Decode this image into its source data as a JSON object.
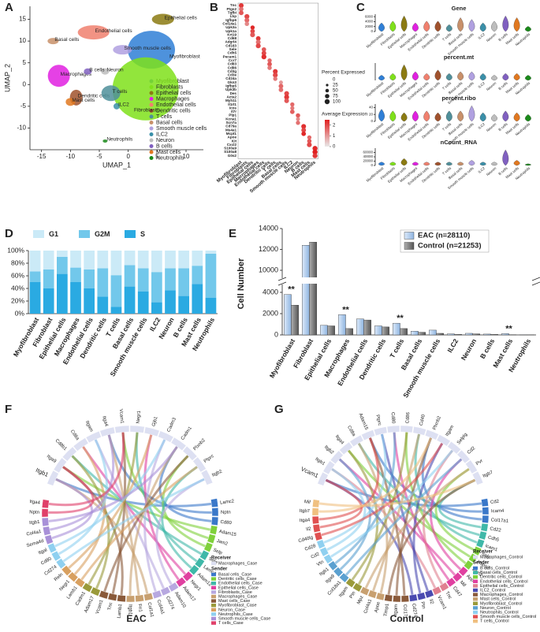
{
  "panels": [
    "A",
    "B",
    "C",
    "D",
    "E",
    "F",
    "G"
  ],
  "chart_data": [
    {
      "type": "scatter",
      "xlabel": "UMAP_1",
      "ylabel": "UMAP_2",
      "xlim": [
        -17,
        13
      ],
      "ylim": [
        -15,
        18
      ],
      "xticks": [
        -15,
        -10,
        -5,
        0,
        5,
        10
      ],
      "yticks": [
        -10,
        -5,
        0,
        5,
        10,
        15
      ],
      "series": [
        {
          "name": "Myofibroblast",
          "color": "#2f7fd6",
          "x": [
            4
          ],
          "y": [
            8
          ]
        },
        {
          "name": "Fibroblasts",
          "color": "#7fe01a",
          "x": [
            3
          ],
          "y": [
            -1
          ]
        },
        {
          "name": "Epithelial cells",
          "color": "#8b7a12",
          "x": [
            6
          ],
          "y": [
            15
          ]
        },
        {
          "name": "Macrophages",
          "color": "#e020e0",
          "x": [
            -12
          ],
          "y": [
            2
          ]
        },
        {
          "name": "Endothelial cells",
          "color": "#f0806e",
          "x": [
            -6
          ],
          "y": [
            12
          ]
        },
        {
          "name": "Dendritic cells",
          "color": "#a0522d",
          "x": [
            -9
          ],
          "y": [
            -3
          ]
        },
        {
          "name": "T cells",
          "color": "#4f8f9a",
          "x": [
            -3
          ],
          "y": [
            -2
          ]
        },
        {
          "name": "Basal cells",
          "color": "#c8906a",
          "x": [
            -13
          ],
          "y": [
            10
          ]
        },
        {
          "name": "Smooth muscle cells",
          "color": "#b0a0e0",
          "x": [
            -1
          ],
          "y": [
            8
          ]
        },
        {
          "name": "ILC2",
          "color": "#3a8fa8",
          "x": [
            -2
          ],
          "y": [
            -5
          ]
        },
        {
          "name": "Neuron",
          "color": "#bdbdbd",
          "x": [
            -4
          ],
          "y": [
            3
          ]
        },
        {
          "name": "B cells",
          "color": "#8060c0",
          "x": [
            -7
          ],
          "y": [
            3
          ]
        },
        {
          "name": "Mast cells",
          "color": "#e07820",
          "x": [
            -10
          ],
          "y": [
            -4
          ]
        },
        {
          "name": "Neutrophils",
          "color": "#1a8a1a",
          "x": [
            -4
          ],
          "y": [
            -13
          ]
        }
      ]
    },
    {
      "type": "dot",
      "genes": [
        "Tnc",
        "Ptgs2",
        "Tgfbi",
        "Lbp",
        "Igfbp6",
        "Col14a1",
        "Upk3a",
        "Upk1a",
        "Krt19",
        "Cd68",
        "Adgrl4",
        "Cd163",
        "Sele",
        "Cdh5",
        "Pecam1",
        "Ccr7",
        "Cd83",
        "Cd86",
        "Cd3g",
        "Cd3e",
        "Cd24a",
        "Gkn3",
        "Igfbp5",
        "Upk3b",
        "Des",
        "Acta2",
        "Myh11",
        "Il1rl1",
        "Icos",
        "Il7r",
        "Plp1",
        "Kcna1",
        "Scn7a",
        "Cd79a",
        "Ms4a1",
        "Mcpt1",
        "Apoe",
        "Kit",
        "Cxcl2",
        "S100a9",
        "S100a8",
        "G0s2"
      ],
      "categories": [
        "Myofibroblast",
        "Fibroblasts",
        "Epithelial cells",
        "Macrophages",
        "Endothelial cells",
        "Dendritic cells",
        "T cells",
        "Basal cells",
        "Smooth muscle cells",
        "ILC2",
        "Neuron",
        "B cells",
        "Mast cells",
        "Neutrophils"
      ],
      "percent": [
        90,
        80,
        85,
        95,
        88,
        75,
        70,
        80,
        92,
        85,
        90,
        95,
        78,
        88,
        96,
        70,
        82,
        75,
        90,
        94,
        72,
        60,
        85,
        80,
        90,
        95,
        88,
        70,
        65,
        80,
        75,
        60,
        70,
        90,
        85,
        80,
        70,
        75,
        92,
        100,
        100,
        95
      ],
      "expression": [
        2.2,
        1.5,
        1.8,
        2.0,
        1.6,
        1.2,
        2.4,
        2.0,
        1.8,
        2.2,
        1.5,
        2.0,
        1.8,
        2.0,
        2.3,
        1.6,
        1.8,
        1.4,
        2.2,
        2.0,
        1.4,
        1.0,
        1.6,
        1.5,
        2.0,
        2.2,
        1.8,
        1.6,
        1.4,
        1.7,
        1.8,
        1.2,
        1.5,
        2.3,
        2.0,
        2.4,
        1.6,
        1.8,
        2.0,
        2.4,
        2.5,
        2.2
      ],
      "size_title": "Percent Expressed",
      "size_ticks": [
        0,
        25,
        50,
        75,
        100
      ],
      "color_title": "Average Expression",
      "color_lim": [
        0,
        2.5
      ],
      "color_ticks": [
        2,
        1,
        0
      ]
    },
    {
      "type": "violin",
      "categories": [
        "Myofibroblast",
        "Fibroblasts",
        "Epithelial cells",
        "Macrophages",
        "Endothelial cells",
        "Dendritic cells",
        "T cells",
        "Basal cells",
        "Smooth muscle cells",
        "ILC2",
        "Neuron",
        "B cells",
        "Mast cells",
        "Neutrophils"
      ],
      "panels": [
        {
          "title": "Gene",
          "ylim": [
            0,
            7000
          ],
          "yticks": [
            0,
            2000,
            4000,
            6000
          ]
        },
        {
          "title": "percent.mt",
          "ylim": [
            0,
            100
          ],
          "yticks": []
        },
        {
          "title": "percent.ribo",
          "ylim": [
            0,
            50
          ],
          "yticks": [
            0,
            20,
            40
          ]
        },
        {
          "title": "nCount_RNA",
          "ylim": [
            0,
            80000
          ],
          "yticks": [
            0,
            20000,
            40000,
            60000
          ]
        }
      ]
    },
    {
      "type": "stacked_bar",
      "categories": [
        "Myofibroblast",
        "Fibroblast",
        "Epithelial cells",
        "Macrophages",
        "Endothelial cells",
        "Dendritic cells",
        "T cells",
        "Basal cells",
        "Smooth muscle cells",
        "ILC2",
        "Neuron",
        "B cells",
        "Mast cells",
        "Neutrophils"
      ],
      "series": [
        {
          "name": "S",
          "color": "#2aaae2",
          "values": [
            50,
            40,
            63,
            50,
            40,
            27,
            11,
            43,
            35,
            18,
            37,
            28,
            47,
            25
          ]
        },
        {
          "name": "G2M",
          "color": "#72c8eb",
          "values": [
            17,
            30,
            27,
            23,
            30,
            45,
            50,
            34,
            37,
            48,
            35,
            44,
            29,
            70
          ]
        },
        {
          "name": "G1",
          "color": "#cbeaf7",
          "values": [
            33,
            30,
            10,
            27,
            30,
            28,
            39,
            23,
            28,
            34,
            28,
            28,
            24,
            5
          ]
        }
      ],
      "legend_order": [
        "G1",
        "G2M",
        "S"
      ],
      "ylim": [
        0,
        100
      ],
      "yticks": [
        {
          "value": 0,
          "label": "0%"
        },
        {
          "value": 20,
          "label": "20%"
        },
        {
          "value": 40,
          "label": "40%"
        },
        {
          "value": 60,
          "label": "60%"
        },
        {
          "value": 80,
          "label": "80%"
        },
        {
          "value": 100,
          "label": "100%"
        }
      ]
    },
    {
      "type": "grouped_bar",
      "ylabel": "Cell Number",
      "categories": [
        "Myofibroblast",
        "Fibroblast",
        "Epithelial cells",
        "Macrophages",
        "Endothelial cells",
        "Dendritic cells",
        "T cells",
        "Basal cells",
        "Smooth muscle cells",
        "ILC2",
        "Neuron",
        "B cells",
        "Mast cells",
        "Neutrophils"
      ],
      "series": [
        {
          "name": "EAC (n=28110)",
          "color": "#b8d2f0",
          "values": [
            3800,
            12400,
            900,
            1900,
            1500,
            850,
            1100,
            350,
            450,
            100,
            150,
            80,
            120,
            10
          ]
        },
        {
          "name": "Control (n=21253)",
          "color": "#7a7a7a",
          "values": [
            2800,
            12700,
            850,
            600,
            1400,
            750,
            600,
            250,
            150,
            50,
            100,
            50,
            20,
            5
          ]
        }
      ],
      "ylim": [
        0,
        14000
      ],
      "axis_break": [
        4000,
        10000
      ],
      "yticks": [
        0,
        2000,
        4000,
        10000,
        12000,
        14000
      ],
      "annotations": [
        {
          "text": "**",
          "category": "Myofibroblast"
        },
        {
          "text": "**",
          "category": "Macrophages"
        },
        {
          "text": "**",
          "category": "T cells"
        },
        {
          "text": "**",
          "category": "Mast cells"
        }
      ]
    }
  ],
  "chords": [
    {
      "title": "EAC",
      "receiver_heading": "Receiver",
      "receiver": "Macrophages_Case",
      "sender_heading": "Sender",
      "senders": [
        "Basal cells_Case",
        "Dentritic cells_Case",
        "Endothelial cells_Case",
        "Epithelial cells_Case",
        "Fibroblasts_Case",
        "Macrophages_Case",
        "Mast cells_Case",
        "Myofibroblast_Case",
        "Neuron_Case",
        "Neutrophils_Case",
        "Smooth muscle cells_Case",
        "T cells_Case"
      ],
      "colors": [
        "#3a78c9",
        "#7fd13b",
        "#3fb8a8",
        "#e040a0",
        "#b7a8e0",
        "#c8a070",
        "#8a5a3a",
        "#9a9a3a",
        "#d8a060",
        "#8fd0f0",
        "#a890d8",
        "#e0406a"
      ],
      "receiver_genes": [
        "Itgb1",
        "Itga9",
        "Cd8b1",
        "Cd8a",
        "Itgam",
        "Itga4",
        "Vcam1",
        "Negr1",
        "Gjb1",
        "Cadm3",
        "Cadm1",
        "Plxnb2",
        "Ptprc",
        "Itgb2"
      ],
      "sender_genes": [
        "Lamc2",
        "Nptn",
        "Cd80",
        "Adam15",
        "Jam2",
        "Selp",
        "Sele",
        "Lamc2",
        "Adam12",
        "Negr1",
        "Adam17",
        "Adam10",
        "Cd274",
        "Col4a1",
        "Col1a1",
        "Fn1",
        "Itgb1",
        "Lamb1",
        "Tnc",
        "Vcam1",
        "Adam17",
        "Cadm1",
        "Lamb1",
        "Negr1",
        "Reln",
        "Cd274",
        "Cd80",
        "Itgal",
        "Sema4d",
        "Col4a1",
        "Itgb1",
        "Nptn",
        "Itga4"
      ]
    },
    {
      "title": "Control",
      "receiver_heading": "Receiver",
      "receiver": "Macrophages_Control",
      "sender_heading": "Sender",
      "senders": [
        "B cells_Control",
        "Basal cells_Control",
        "Dentritic cells_Control",
        "Endothelial cells_Control",
        "Epithelial cells_Control",
        "ILC2_Control",
        "Macrophages_Control",
        "Mast cells_Control",
        "Myofibroblast_Control",
        "Neuron_Control",
        "Neutrophils_Control",
        "Smooth muscle cells_Control",
        "T cells_Control"
      ],
      "colors": [
        "#3a78c9",
        "#3fb8a8",
        "#7fd13b",
        "#e040a0",
        "#e08090",
        "#4a4ab0",
        "#8a5a3a",
        "#c8a070",
        "#9a9a3a",
        "#5aa0d0",
        "#8fd0f0",
        "#e05050",
        "#f0c080"
      ],
      "receiver_genes": [
        "Vcam1",
        "Itgb1",
        "Itgb2",
        "Itga4",
        "Cd8a",
        "Adam15",
        "Ptprc",
        "Cd80",
        "Cd86",
        "Cd40",
        "Plxnb2",
        "Itgam",
        "Selplg",
        "Cd2",
        "Pvr",
        "Itgb7"
      ],
      "sender_genes": [
        "Cd2",
        "Icam4",
        "Col17a1",
        "Cd22",
        "Cdh5",
        "Icam1",
        "Selp",
        "Hspg2",
        "Jam2",
        "App",
        "Mif",
        "Cd47",
        "Tnc",
        "Vcam1",
        "Il2",
        "Ptn",
        "Cd274",
        "Ccl17",
        "Itgam",
        "Timp1",
        "Apoe",
        "Col4a1",
        "Mpz",
        "Ptn",
        "Itgam",
        "Col18a1",
        "Itga9",
        "Itgb1",
        "Vtn",
        "Cd2",
        "Cd28",
        "Cd40lg",
        "Il2",
        "Itga4",
        "Itgb7",
        "Mif"
      ]
    }
  ]
}
